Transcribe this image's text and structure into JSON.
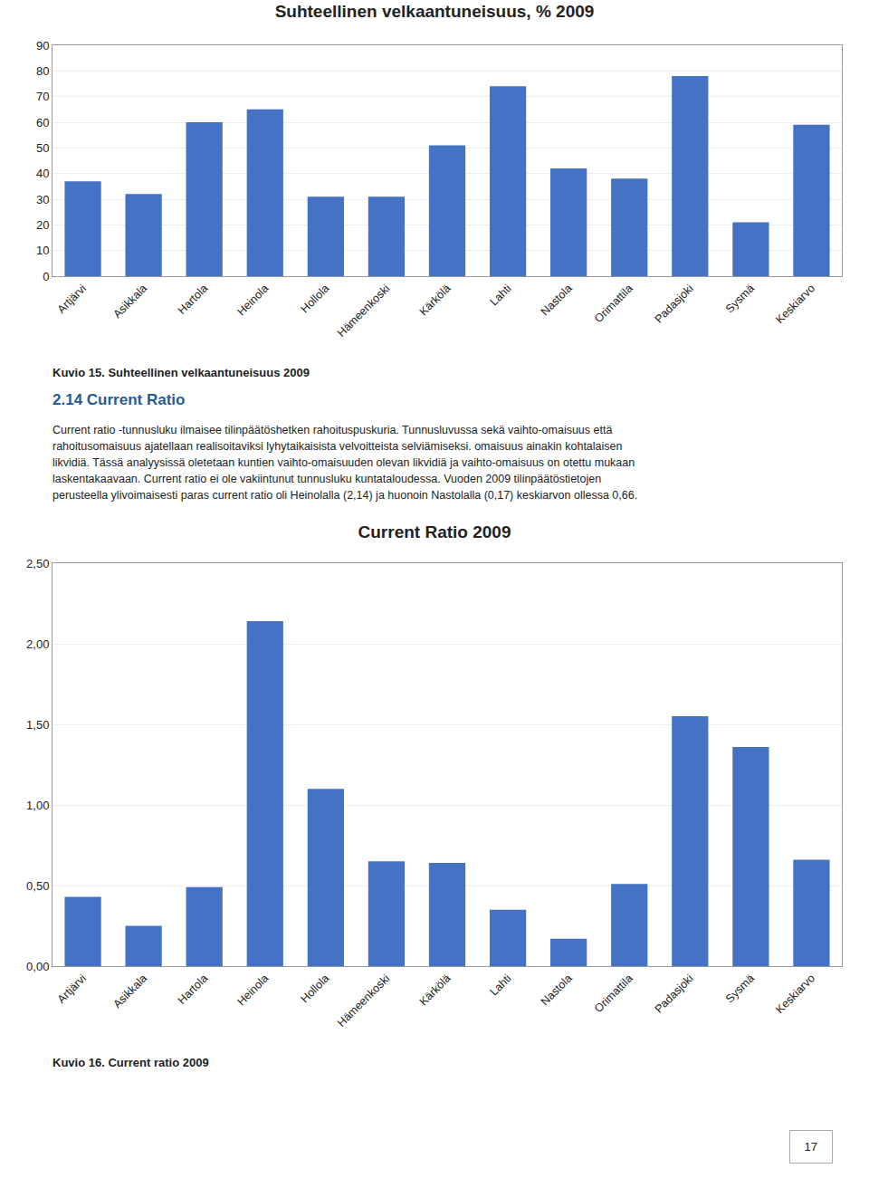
{
  "chart_data": [
    {
      "type": "bar",
      "title": "Suhteellinen velkaantuneisuus, % 2009",
      "categories": [
        "Artjärvi",
        "Asikkala",
        "Hartola",
        "Heinola",
        "Hollola",
        "Hämeenkoski",
        "Kärkölä",
        "Lahti",
        "Nastola",
        "Orimattila",
        "Padasjoki",
        "Sysmä",
        "Keskiarvo"
      ],
      "values": [
        37,
        32,
        60,
        65,
        31,
        31,
        51,
        74,
        42,
        38,
        78,
        21,
        59
      ],
      "color": "#4472C4",
      "ylim": [
        0,
        90
      ],
      "yticks": [
        0,
        10,
        20,
        30,
        40,
        50,
        60,
        70,
        80,
        90
      ],
      "grid": true,
      "caption": "Kuvio 15. Suhteellinen velkaantuneisuus 2009"
    },
    {
      "type": "bar",
      "title": "Current Ratio 2009",
      "categories": [
        "Artjärvi",
        "Asikkala",
        "Hartola",
        "Heinola",
        "Hollola",
        "Hämeenkoski",
        "Kärkölä",
        "Lahti",
        "Nastola",
        "Orimattila",
        "Padasjoki",
        "Sysmä",
        "Keskiarvo"
      ],
      "values": [
        0.43,
        0.25,
        0.49,
        2.14,
        1.1,
        0.65,
        0.64,
        0.35,
        0.17,
        0.51,
        1.55,
        1.36,
        0.66
      ],
      "color": "#4472C4",
      "ylim": [
        0,
        2.5
      ],
      "yticks": [
        {
          "value": 0.0,
          "label": "0,00"
        },
        {
          "value": 0.5,
          "label": "0,50"
        },
        {
          "value": 1.0,
          "label": "1,00"
        },
        {
          "value": 1.5,
          "label": "1,50"
        },
        {
          "value": 2.0,
          "label": "2,00"
        },
        {
          "value": 2.5,
          "label": "2,50"
        }
      ],
      "grid": true,
      "caption": "Kuvio 16. Current ratio 2009"
    }
  ],
  "section_title": "2.14 Current Ratio",
  "body_text": [
    "Current ratio -tunnusluku ilmaisee tilinpäätöshetken rahoituspuskuria. Tunnusluvussa sekä vaihto-omaisuus että",
    "rahoitusomaisuus ajatellaan realisoitaviksi lyhytaikaisista velvoitteista selviämiseksi. omaisuus ainakin kohtalaisen",
    "likvidiä. Tässä analyysissä oletetaan kuntien vaihto-omaisuuden olevan likvidiä ja vaihto-omaisuus on otettu mukaan",
    "laskentakaavaan. Current ratio ei ole vakiintunut tunnusluku kuntataloudessa. Vuoden 2009 tilinpäätöstietojen",
    "perusteella ylivoimaisesti paras current ratio oli Heinolalla (2,14) ja huonoin Nastolalla (0,17) keskiarvon ollessa 0,66."
  ],
  "page_number": "17"
}
